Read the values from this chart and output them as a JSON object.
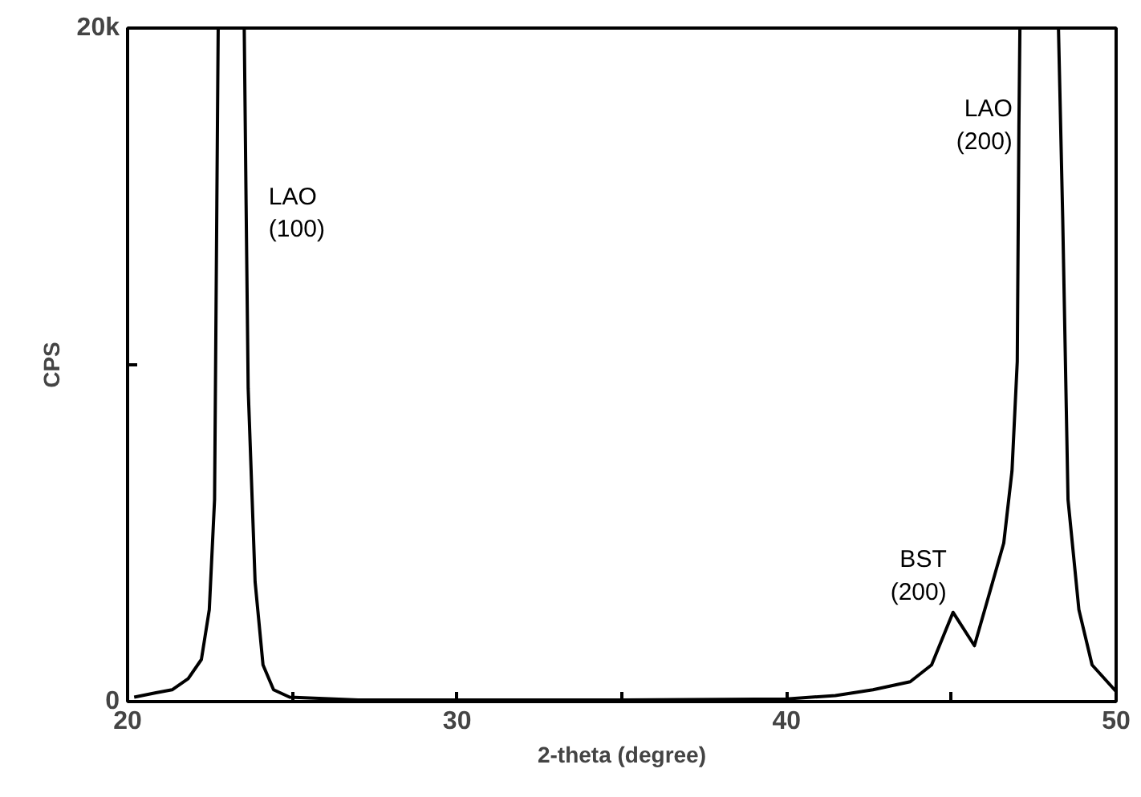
{
  "chart_data": {
    "type": "line",
    "xlabel": "2-theta (degree)",
    "ylabel": "CPS",
    "xlim": [
      20,
      50
    ],
    "ylim": [
      0,
      20000
    ],
    "xticks": [
      20,
      {
        "value": 25,
        "label": null
      },
      30,
      {
        "value": 35,
        "label": null
      },
      40,
      {
        "value": 45,
        "label": null
      },
      50
    ],
    "yticks": [
      0,
      {
        "value": 10000,
        "label": null
      },
      {
        "value": 20000,
        "label": "20k"
      }
    ],
    "grid": false,
    "marker": "none",
    "line_style": "solid",
    "series": [
      {
        "color": "#000000",
        "x": [
          20.2,
          20.86,
          21.35,
          21.84,
          22.24,
          22.48,
          22.64,
          22.75,
          23.54,
          23.6,
          23.66,
          23.87,
          24.11,
          24.43,
          24.92,
          27,
          30,
          35,
          40,
          41.48,
          42.62,
          43.75,
          44.4,
          45.05,
          45.7,
          46.11,
          46.59,
          46.84,
          47.0,
          47.05,
          47.08,
          48.25,
          48.38,
          48.54,
          48.87,
          49.27,
          50
        ],
        "values": [
          130,
          260,
          350,
          680,
          1250,
          2730,
          6000,
          20000,
          20000,
          14500,
          9300,
          3560,
          1090,
          350,
          130,
          50,
          50,
          50,
          80,
          180,
          350,
          590,
          1090,
          2650,
          1660,
          3060,
          4710,
          6850,
          10100,
          17100,
          20000,
          20000,
          14300,
          6000,
          2730,
          1090,
          300
        ]
      }
    ],
    "annotations": [
      {
        "text": "LAO\n(100)",
        "x": 23.6,
        "y": 14500
      },
      {
        "text": "LAO\n(200)",
        "x": 47.05,
        "y": 17100
      },
      {
        "text": "BST\n(200)",
        "x": 45.05,
        "y": 2650
      }
    ]
  }
}
